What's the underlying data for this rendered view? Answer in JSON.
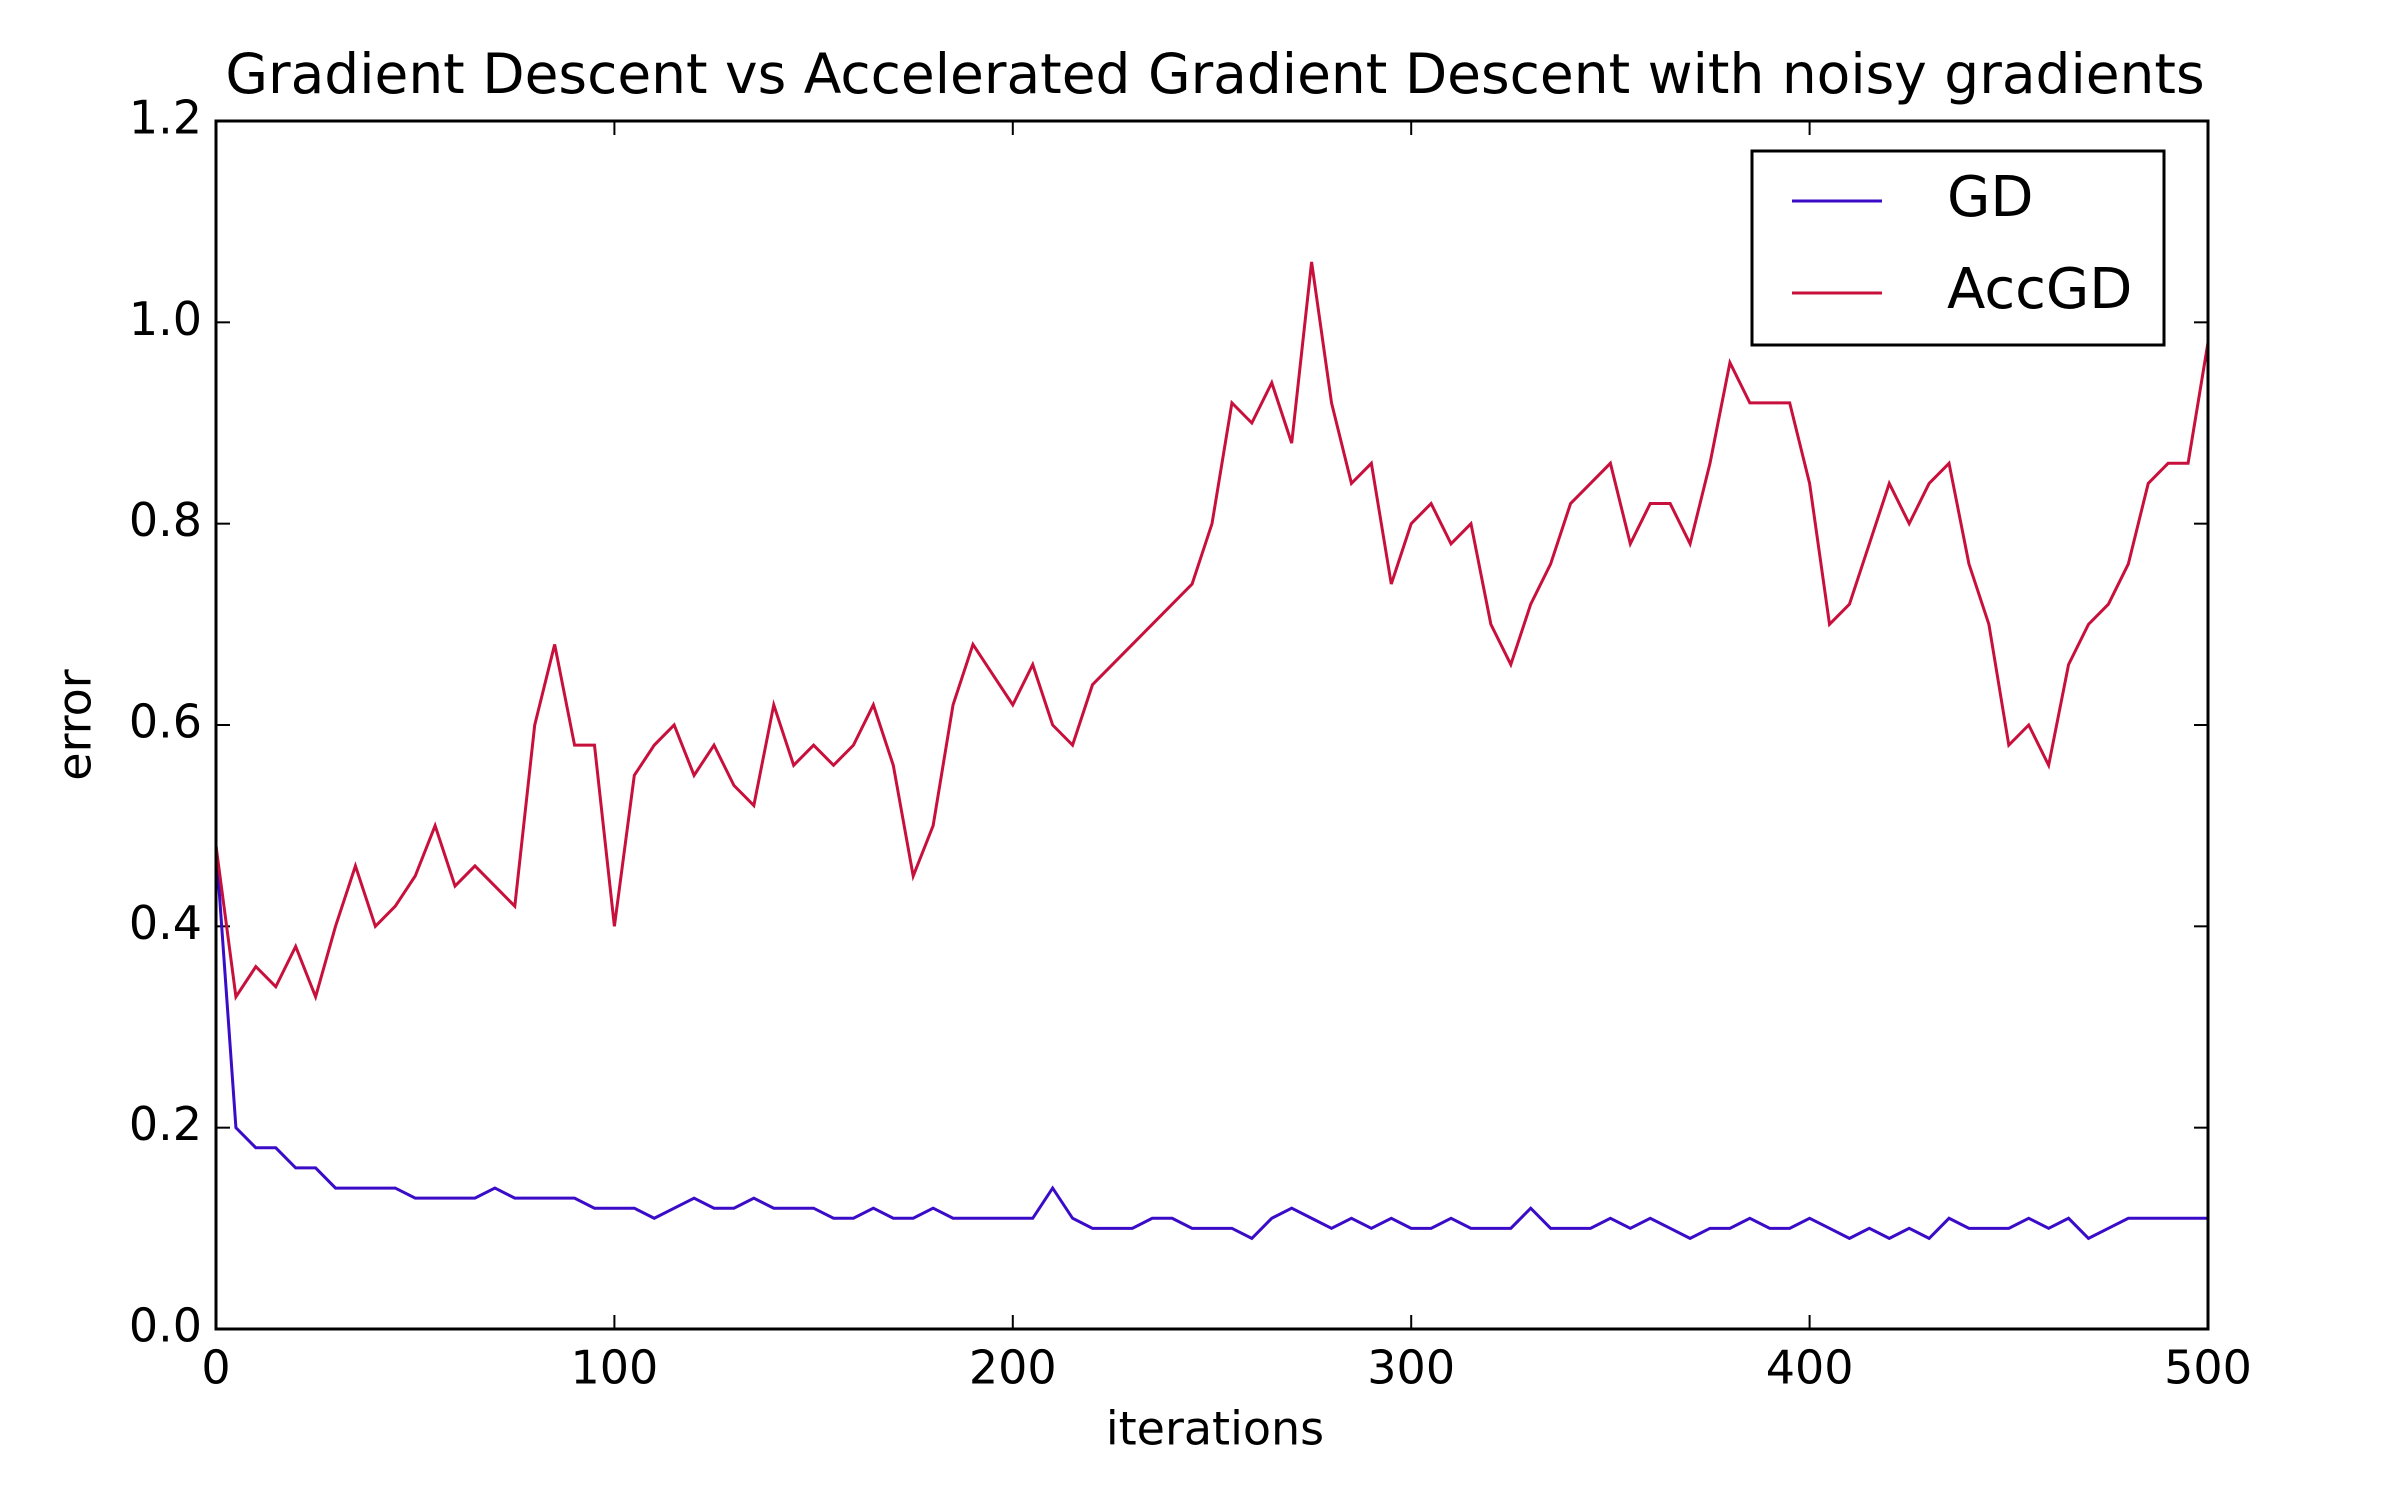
{
  "chart_data": {
    "type": "line",
    "title": "Gradient Descent vs Accelerated Gradient Descent with noisy gradients",
    "x_label": "iterations",
    "y_label": "error",
    "x": [
      0,
      5,
      10,
      15,
      20,
      25,
      30,
      35,
      40,
      45,
      50,
      55,
      60,
      65,
      70,
      75,
      80,
      85,
      90,
      95,
      100,
      105,
      110,
      115,
      120,
      125,
      130,
      135,
      140,
      145,
      150,
      155,
      160,
      165,
      170,
      175,
      180,
      185,
      190,
      195,
      200,
      205,
      210,
      215,
      220,
      225,
      230,
      235,
      240,
      245,
      250,
      255,
      260,
      265,
      270,
      275,
      280,
      285,
      290,
      295,
      300,
      305,
      310,
      315,
      320,
      325,
      330,
      335,
      340,
      345,
      350,
      355,
      360,
      365,
      370,
      375,
      380,
      385,
      390,
      395,
      400,
      405,
      410,
      415,
      420,
      425,
      430,
      435,
      440,
      445,
      450,
      455,
      460,
      465,
      470,
      475,
      480,
      485,
      490,
      495,
      500
    ],
    "series": [
      {
        "name": "GD",
        "color": "#3a0cc8",
        "values": [
          0.48,
          0.2,
          0.18,
          0.18,
          0.16,
          0.16,
          0.14,
          0.14,
          0.14,
          0.14,
          0.13,
          0.13,
          0.13,
          0.13,
          0.14,
          0.13,
          0.13,
          0.13,
          0.13,
          0.12,
          0.12,
          0.12,
          0.11,
          0.12,
          0.13,
          0.12,
          0.12,
          0.13,
          0.12,
          0.12,
          0.12,
          0.11,
          0.11,
          0.12,
          0.11,
          0.11,
          0.12,
          0.11,
          0.11,
          0.11,
          0.11,
          0.11,
          0.14,
          0.11,
          0.1,
          0.1,
          0.1,
          0.11,
          0.11,
          0.1,
          0.1,
          0.1,
          0.09,
          0.11,
          0.12,
          0.11,
          0.1,
          0.11,
          0.1,
          0.11,
          0.1,
          0.1,
          0.11,
          0.1,
          0.1,
          0.1,
          0.12,
          0.1,
          0.1,
          0.1,
          0.11,
          0.1,
          0.11,
          0.1,
          0.09,
          0.1,
          0.1,
          0.11,
          0.1,
          0.1,
          0.11,
          0.1,
          0.09,
          0.1,
          0.09,
          0.1,
          0.09,
          0.11,
          0.1,
          0.1,
          0.1,
          0.11,
          0.1,
          0.11,
          0.09,
          0.1,
          0.11,
          0.11,
          0.11,
          0.11,
          0.11
        ]
      },
      {
        "name": "AccGD",
        "color": "#c8103c",
        "values": [
          0.48,
          0.33,
          0.36,
          0.34,
          0.38,
          0.33,
          0.4,
          0.46,
          0.4,
          0.42,
          0.45,
          0.5,
          0.44,
          0.46,
          0.44,
          0.42,
          0.6,
          0.68,
          0.58,
          0.58,
          0.4,
          0.55,
          0.58,
          0.6,
          0.55,
          0.58,
          0.54,
          0.52,
          0.62,
          0.56,
          0.58,
          0.56,
          0.58,
          0.62,
          0.56,
          0.45,
          0.5,
          0.62,
          0.68,
          0.65,
          0.62,
          0.66,
          0.6,
          0.58,
          0.64,
          0.66,
          0.68,
          0.7,
          0.72,
          0.74,
          0.8,
          0.92,
          0.9,
          0.94,
          0.88,
          1.06,
          0.92,
          0.84,
          0.86,
          0.74,
          0.8,
          0.82,
          0.78,
          0.8,
          0.7,
          0.66,
          0.72,
          0.76,
          0.82,
          0.84,
          0.86,
          0.78,
          0.82,
          0.82,
          0.78,
          0.86,
          0.96,
          0.92,
          0.92,
          0.92,
          0.84,
          0.7,
          0.72,
          0.78,
          0.84,
          0.8,
          0.84,
          0.86,
          0.76,
          0.7,
          0.58,
          0.6,
          0.56,
          0.66,
          0.7,
          0.72,
          0.76,
          0.84,
          0.86,
          0.86,
          0.98
        ]
      }
    ],
    "xlim": [
      0,
      500
    ],
    "xticks": [
      0,
      100,
      200,
      300,
      400,
      500
    ],
    "ylim": [
      0,
      1.2
    ],
    "yticks": [
      {
        "value": 0,
        "label": "0.0"
      },
      0.2,
      0.4,
      0.6,
      0.8,
      {
        "value": 1,
        "label": "1.0"
      },
      1.2
    ],
    "legend": "upper right"
  }
}
